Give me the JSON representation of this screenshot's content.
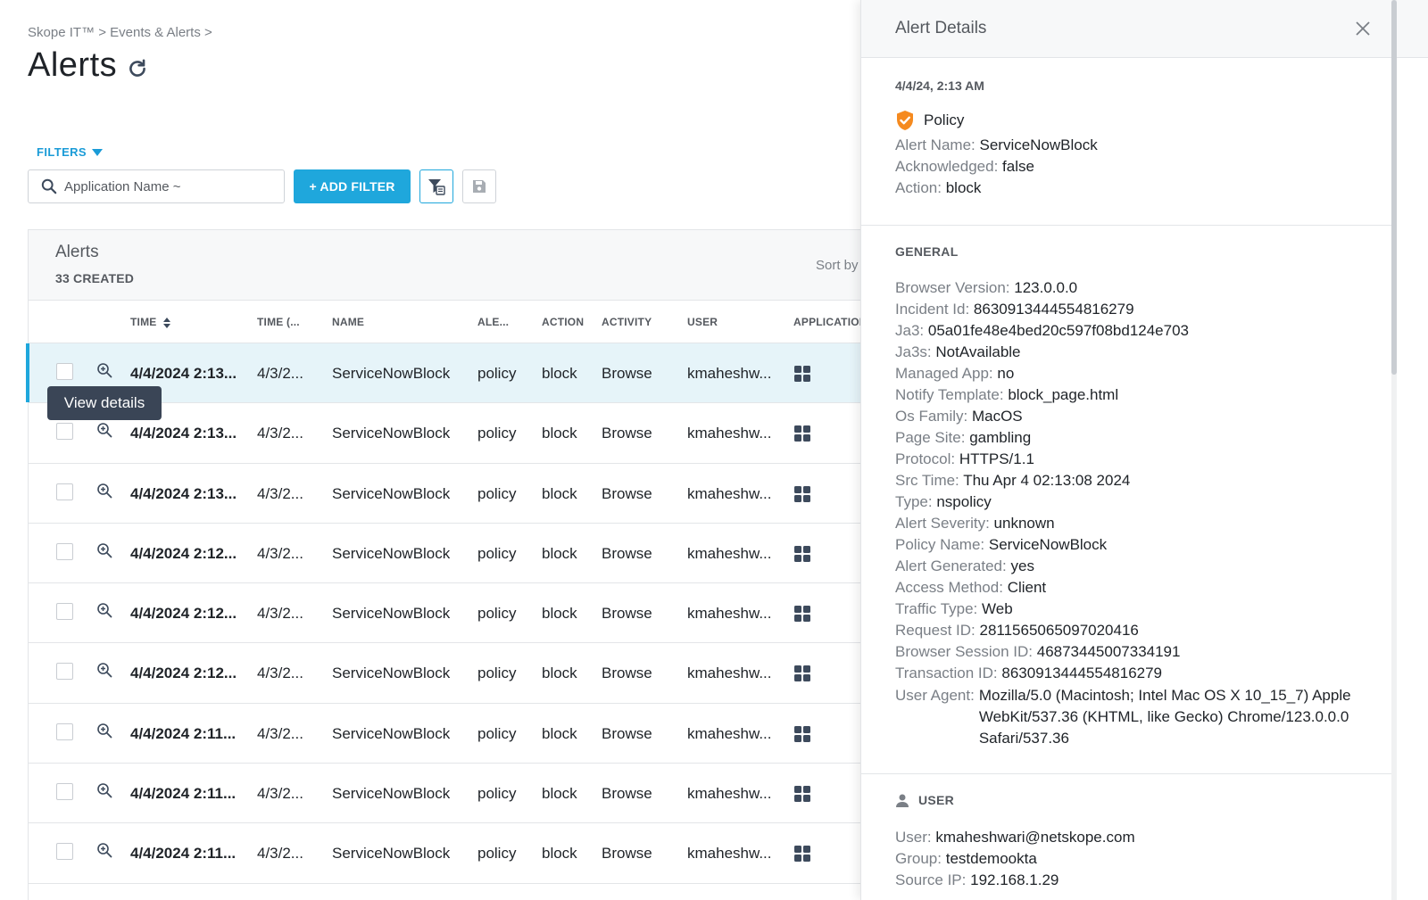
{
  "breadcrumb": "Skope IT™ > Events & Alerts >",
  "page_title": "Alerts",
  "filters_label": "FILTERS",
  "search_placeholder": "Application Name ~",
  "add_filter_label": "+ ADD FILTER",
  "card": {
    "title": "Alerts",
    "count": "33 CREATED",
    "sort_by": "Sort by"
  },
  "columns": {
    "time": "TIME",
    "time2": "TIME (...",
    "name": "NAME",
    "alert": "ALE...",
    "action": "ACTION",
    "activity": "ACTIVITY",
    "user": "USER",
    "application": "APPLICATION"
  },
  "rows": [
    {
      "time": "4/4/2024 2:13...",
      "time2": "4/3/2...",
      "name": "ServiceNowBlock",
      "alert": "policy",
      "action": "block",
      "activity": "Browse",
      "user": "kmaheshw..."
    },
    {
      "time": "4/4/2024 2:13...",
      "time2": "4/3/2...",
      "name": "ServiceNowBlock",
      "alert": "policy",
      "action": "block",
      "activity": "Browse",
      "user": "kmaheshw..."
    },
    {
      "time": "4/4/2024 2:13...",
      "time2": "4/3/2...",
      "name": "ServiceNowBlock",
      "alert": "policy",
      "action": "block",
      "activity": "Browse",
      "user": "kmaheshw..."
    },
    {
      "time": "4/4/2024 2:12...",
      "time2": "4/3/2...",
      "name": "ServiceNowBlock",
      "alert": "policy",
      "action": "block",
      "activity": "Browse",
      "user": "kmaheshw..."
    },
    {
      "time": "4/4/2024 2:12...",
      "time2": "4/3/2...",
      "name": "ServiceNowBlock",
      "alert": "policy",
      "action": "block",
      "activity": "Browse",
      "user": "kmaheshw..."
    },
    {
      "time": "4/4/2024 2:12...",
      "time2": "4/3/2...",
      "name": "ServiceNowBlock",
      "alert": "policy",
      "action": "block",
      "activity": "Browse",
      "user": "kmaheshw..."
    },
    {
      "time": "4/4/2024 2:11...",
      "time2": "4/3/2...",
      "name": "ServiceNowBlock",
      "alert": "policy",
      "action": "block",
      "activity": "Browse",
      "user": "kmaheshw..."
    },
    {
      "time": "4/4/2024 2:11...",
      "time2": "4/3/2...",
      "name": "ServiceNowBlock",
      "alert": "policy",
      "action": "block",
      "activity": "Browse",
      "user": "kmaheshw..."
    },
    {
      "time": "4/4/2024 2:11...",
      "time2": "4/3/2...",
      "name": "ServiceNowBlock",
      "alert": "policy",
      "action": "block",
      "activity": "Browse",
      "user": "kmaheshw..."
    }
  ],
  "tooltip": "View details",
  "panel": {
    "title": "Alert Details",
    "timestamp": "4/4/24, 2:13 AM",
    "policy_label": "Policy",
    "summary": [
      {
        "k": "Alert Name:",
        "v": "ServiceNowBlock"
      },
      {
        "k": "Acknowledged:",
        "v": "false"
      },
      {
        "k": "Action:",
        "v": "block"
      }
    ],
    "general_label": "GENERAL",
    "general": [
      {
        "k": "Browser Version:",
        "v": "123.0.0.0"
      },
      {
        "k": "Incident Id:",
        "v": "8630913444554816279"
      },
      {
        "k": "Ja3:",
        "v": "05a01fe48e4bed20c597f08bd124e703"
      },
      {
        "k": "Ja3s:",
        "v": "NotAvailable"
      },
      {
        "k": "Managed App:",
        "v": "no"
      },
      {
        "k": "Notify Template:",
        "v": "block_page.html"
      },
      {
        "k": "Os Family:",
        "v": "MacOS"
      },
      {
        "k": "Page Site:",
        "v": "gambling"
      },
      {
        "k": "Protocol:",
        "v": "HTTPS/1.1"
      },
      {
        "k": "Src Time:",
        "v": "Thu Apr 4 02:13:08 2024"
      },
      {
        "k": "Type:",
        "v": "nspolicy"
      },
      {
        "k": "Alert Severity:",
        "v": "unknown"
      },
      {
        "k": "Policy Name:",
        "v": "ServiceNowBlock"
      },
      {
        "k": "Alert Generated:",
        "v": "yes"
      },
      {
        "k": "Access Method:",
        "v": "Client"
      },
      {
        "k": "Traffic Type:",
        "v": "Web"
      },
      {
        "k": "Request ID:",
        "v": "2811565065097020416"
      },
      {
        "k": "Browser Session ID:",
        "v": "468734450073341​91"
      },
      {
        "k": "Transaction ID:",
        "v": "8630913444554816279"
      }
    ],
    "user_agent": {
      "k": "User Agent:",
      "v": "Mozilla/5.0 (Macintosh; Intel Mac OS X 10_15_7) AppleWebKit/537.36 (KHTML, like Gecko) Chrome/123.0.0.0 Safari/537.36"
    },
    "user_label": "USER",
    "user": [
      {
        "k": "User:",
        "v": "kmaheshwari@netskope.com"
      },
      {
        "k": "Group:",
        "v": "testdemookta"
      },
      {
        "k": "Source IP:",
        "v": "192.168.1.29"
      }
    ]
  },
  "colors": {
    "accent": "#1fa7dc",
    "selected_row": "#e6f4f9",
    "policy_badge": "#f58a1f"
  }
}
